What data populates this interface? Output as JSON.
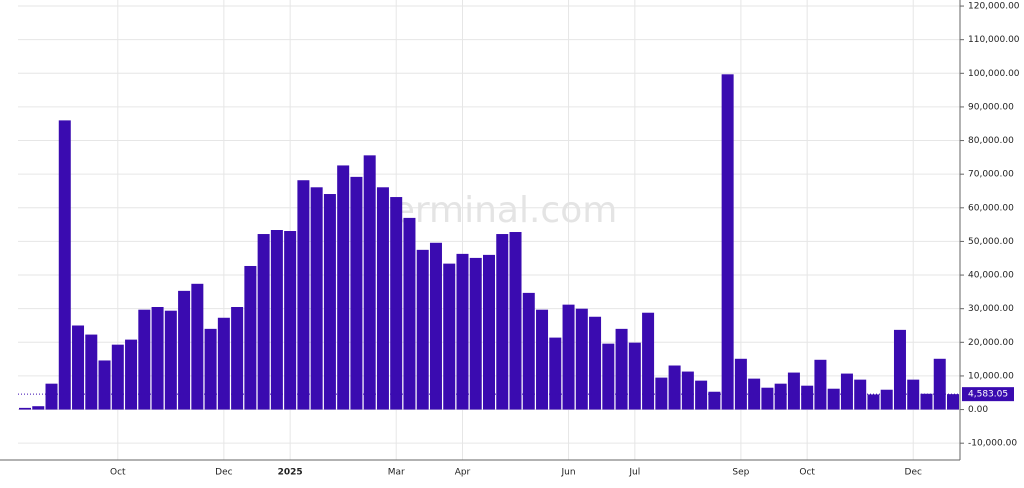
{
  "chart_data": {
    "type": "bar",
    "watermark": "erminal.com",
    "color": "#3a0bb0",
    "grid": true,
    "categories": [
      null,
      null,
      null,
      null,
      null,
      null,
      null,
      "Oct",
      null,
      null,
      null,
      null,
      null,
      null,
      null,
      "Dec",
      null,
      null,
      null,
      null,
      "2025",
      null,
      null,
      null,
      null,
      null,
      null,
      null,
      "Mar",
      null,
      null,
      null,
      null,
      "Apr",
      null,
      null,
      null,
      null,
      null,
      null,
      null,
      "Jun",
      null,
      null,
      null,
      null,
      "Jul",
      null,
      null,
      null,
      null,
      null,
      null,
      null,
      "Sep",
      null,
      null,
      null,
      null,
      "Oct",
      null,
      null,
      null,
      null,
      null,
      null,
      null,
      "Dec",
      null,
      null,
      null
    ],
    "values": [
      500,
      1000,
      7700,
      86000,
      25000,
      22300,
      14600,
      19300,
      20800,
      29700,
      30500,
      29400,
      35300,
      37400,
      24000,
      27300,
      30500,
      42700,
      52200,
      53400,
      53100,
      68200,
      66100,
      64100,
      72600,
      69200,
      75600,
      66100,
      63200,
      57000,
      47500,
      49600,
      43400,
      46300,
      45100,
      46000,
      52200,
      52800,
      34700,
      29700,
      21400,
      31200,
      30000,
      27600,
      19600,
      24000,
      19900,
      28800,
      9500,
      13100,
      11300,
      8600,
      5300,
      99700,
      15100,
      9200,
      6500,
      7700,
      11000,
      7100,
      14800,
      6200,
      10700,
      8900,
      4500,
      5900,
      23700,
      8900,
      4700,
      15100,
      4583.05
    ],
    "value_labels": [
      null,
      null,
      null,
      null,
      null,
      null,
      null,
      null,
      null,
      null,
      null,
      null,
      null,
      null,
      null,
      null,
      null,
      null,
      null,
      null,
      null,
      null,
      null,
      null,
      null,
      null,
      null,
      null,
      null,
      null,
      null,
      null,
      null,
      null,
      null,
      null,
      null,
      null,
      null,
      null,
      null,
      null,
      null,
      null,
      null,
      null,
      null,
      null,
      null,
      null,
      null,
      null,
      null,
      null,
      null,
      null,
      null,
      null,
      null,
      null,
      null,
      null,
      null,
      null,
      null,
      null,
      null,
      null,
      null,
      null,
      "4,583.05"
    ],
    "ylim": [
      -15000,
      121800
    ],
    "yticks": [
      {
        "value": -10000,
        "label": "-10,000.00"
      },
      {
        "value": 0,
        "label": "0.00"
      },
      {
        "value": 10000,
        "label": "10,000.00"
      },
      {
        "value": 20000,
        "label": "20,000.00"
      },
      {
        "value": 30000,
        "label": "30,000.00"
      },
      {
        "value": 40000,
        "label": "40,000.00"
      },
      {
        "value": 50000,
        "label": "50,000.00"
      },
      {
        "value": 60000,
        "label": "60,000.00"
      },
      {
        "value": 70000,
        "label": "70,000.00"
      },
      {
        "value": 80000,
        "label": "80,000.00"
      },
      {
        "value": 90000,
        "label": "90,000.00"
      },
      {
        "value": 100000,
        "label": "100,000.00"
      },
      {
        "value": 110000,
        "label": "110,000.00"
      },
      {
        "value": 120000,
        "label": "120,000.00"
      }
    ]
  }
}
